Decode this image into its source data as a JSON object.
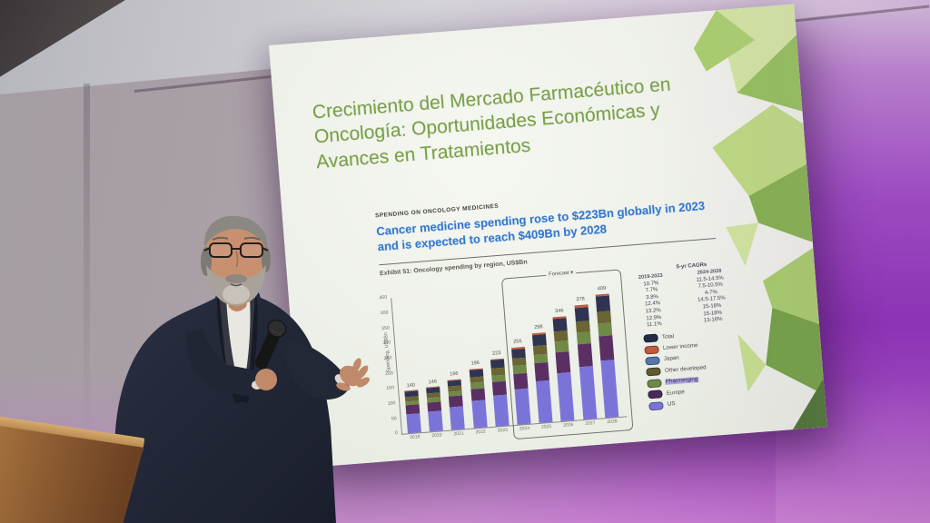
{
  "slide": {
    "title": "Crecimiento del Mercado Farmacéutico en Oncología: Oportunidades Económicas y Avances en Tratamientos",
    "kicker": "SPENDING ON ONCOLOGY MEDICINES",
    "headline": "Cancer medicine spending rose to $223Bn globally in 2023 and is expected to reach $409Bn by 2028",
    "exhibit_caption": "Exhibit 51: Oncology spending by region, US$Bn",
    "title_color": "#79a148",
    "headline_color": "#3278d2"
  },
  "chart_data": {
    "type": "bar",
    "stacked": true,
    "title": "Oncology spending by region, US$Bn",
    "xlabel": "",
    "ylabel": "Spending, US$Bn",
    "ylim": [
      0,
      450
    ],
    "ytick_step": 50,
    "grid": false,
    "legend_position": "right",
    "categories": [
      "2019",
      "2020",
      "2021",
      "2022",
      "2023",
      "2024",
      "2025",
      "2026",
      "2027",
      "2028"
    ],
    "totals": [
      140,
      146,
      166,
      196,
      223,
      255,
      298,
      346,
      378,
      409
    ],
    "forecast": {
      "label": "Forecast",
      "from_index": 5
    },
    "series": [
      {
        "name": "US",
        "color": "#7b74d8",
        "share": 0.46
      },
      {
        "name": "Europe",
        "color": "#5a2f63",
        "share": 0.2
      },
      {
        "name": "Pharmerging",
        "color": "#6e8a46",
        "share": 0.1
      },
      {
        "name": "Other developed",
        "color": "#6b6434",
        "share": 0.1
      },
      {
        "name": "Japan",
        "color": "#2f3550",
        "share": 0.12
      },
      {
        "name": "Lower income",
        "color": "#bf5b40",
        "share": 0.02
      }
    ],
    "legend": [
      {
        "label": "Total",
        "color": "#252c49",
        "highlighted": false
      },
      {
        "label": "Lower income",
        "color": "#bf5b40",
        "highlighted": false
      },
      {
        "label": "Japan",
        "color": "#5577a8",
        "highlighted": false
      },
      {
        "label": "Other developed",
        "color": "#5f5b30",
        "highlighted": false
      },
      {
        "label": "Pharmerging",
        "color": "#6e8a46",
        "highlighted": true
      },
      {
        "label": "Europe",
        "color": "#4a2a5e",
        "highlighted": false
      },
      {
        "label": "US",
        "color": "#7b74d8",
        "highlighted": false
      }
    ],
    "cagr_table": {
      "title": "5-yr CAGRs",
      "columns": [
        "2019-2023",
        "2024-2028"
      ],
      "rows": [
        [
          "10.7%",
          "11.5-14.5%"
        ],
        [
          "7.7%",
          "7.5-10.5%"
        ],
        [
          "3.8%",
          "4-7%"
        ],
        [
          "12.4%",
          "14.5-17.5%"
        ],
        [
          "13.2%",
          "15-18%"
        ],
        [
          "12.9%",
          "15-18%"
        ],
        [
          "11.1%",
          "13-16%"
        ]
      ]
    }
  }
}
